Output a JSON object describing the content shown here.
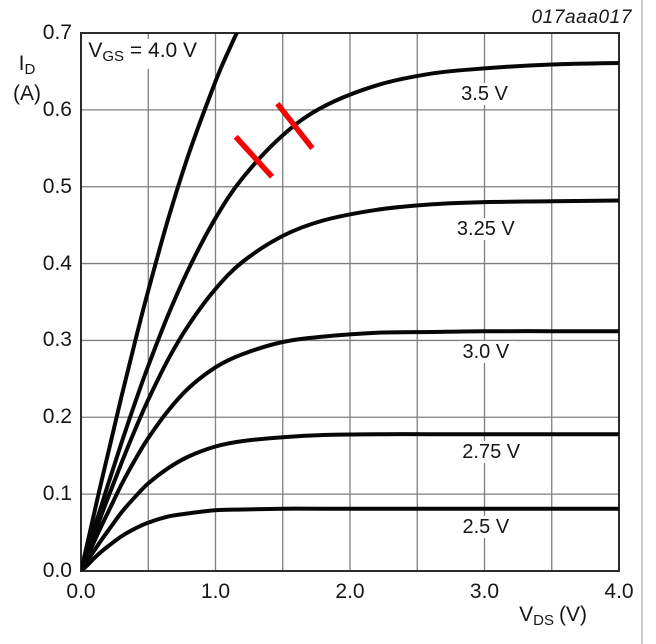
{
  "figure": {
    "id": "017aaa017"
  },
  "colors": {
    "background": "#ffffff",
    "grid": "#7e7e7e",
    "frame": "#2b2b2b",
    "curve": "#070707",
    "text": "#161616",
    "annotation": "#f50003",
    "page_edge": "#cccccc"
  },
  "chart_data": {
    "type": "line",
    "title": "",
    "description": "MOSFET output characteristics: drain current ID (A) versus drain-source voltage VDS (V) for six gate-source voltages VGS",
    "grid": "on",
    "legend_position": "labels-on-curves",
    "x_axis": {
      "label_main": "V",
      "label_sub": "DS",
      "label_unit": "(V)",
      "min": 0,
      "max": 4,
      "grid_step": 0.5,
      "ticks": [
        {
          "label": "0.0",
          "value": 0
        },
        {
          "label": "1.0",
          "value": 1
        },
        {
          "label": "2.0",
          "value": 2
        },
        {
          "label": "3.0",
          "value": 3
        },
        {
          "label": "4.0",
          "value": 4
        }
      ]
    },
    "y_axis": {
      "label_main": "I",
      "label_sub": "D",
      "label_unit": "(A)",
      "min": 0,
      "max": 0.7,
      "grid_step": 0.1,
      "ticks": [
        {
          "label": "0.0",
          "value": 0
        },
        {
          "label": "0.1",
          "value": 0.1
        },
        {
          "label": "0.2",
          "value": 0.2
        },
        {
          "label": "0.3",
          "value": 0.3
        },
        {
          "label": "0.4",
          "value": 0.4
        },
        {
          "label": "0.5",
          "value": 0.5
        },
        {
          "label": "0.6",
          "value": 0.6
        },
        {
          "label": "0.7",
          "value": 0.7
        }
      ]
    },
    "inplot_label": {
      "pre": "V",
      "sub": "GS",
      "post": " = 4.0 V",
      "v": 0.04,
      "i": 0.692
    },
    "series": [
      {
        "name": "VGS = 4.0 V",
        "vds": [
          0,
          0.05,
          0.1,
          0.15,
          0.2,
          0.3,
          0.4,
          0.5,
          0.65,
          0.8,
          1.0,
          1.1,
          1.2,
          1.3
        ],
        "id": [
          0,
          0.038,
          0.077,
          0.115,
          0.152,
          0.226,
          0.297,
          0.365,
          0.459,
          0.542,
          0.637,
          0.678,
          0.715,
          0.747
        ],
        "curve_label": null
      },
      {
        "name": "VGS = 3.5 V",
        "vds": [
          0,
          0.05,
          0.1,
          0.15,
          0.2,
          0.3,
          0.4,
          0.5,
          0.65,
          0.8,
          1.0,
          1.2,
          1.5,
          1.8,
          2.2,
          2.6,
          3.0,
          3.5,
          4.0
        ],
        "id": [
          0,
          0.028,
          0.057,
          0.084,
          0.112,
          0.166,
          0.218,
          0.267,
          0.334,
          0.393,
          0.459,
          0.511,
          0.567,
          0.604,
          0.632,
          0.647,
          0.654,
          0.659,
          0.661
        ],
        "curve_label": {
          "text": "3.5 V",
          "v": 3.0,
          "i": 0.621
        }
      },
      {
        "name": "VGS = 3.25 V",
        "vds": [
          0,
          0.05,
          0.1,
          0.15,
          0.2,
          0.3,
          0.4,
          0.5,
          0.65,
          0.8,
          1.0,
          1.2,
          1.5,
          1.8,
          2.2,
          2.6,
          3.0,
          3.5,
          4.0
        ],
        "id": [
          0,
          0.024,
          0.048,
          0.072,
          0.095,
          0.14,
          0.183,
          0.223,
          0.276,
          0.32,
          0.367,
          0.402,
          0.436,
          0.456,
          0.47,
          0.477,
          0.48,
          0.481,
          0.482
        ],
        "curve_label": {
          "text": "3.25 V",
          "v": 3.01,
          "i": 0.445
        }
      },
      {
        "name": "VGS = 3.0 V",
        "vds": [
          0,
          0.05,
          0.1,
          0.15,
          0.2,
          0.3,
          0.4,
          0.5,
          0.65,
          0.8,
          1.0,
          1.2,
          1.5,
          1.8,
          2.2,
          2.6,
          3.0,
          3.5,
          4.0
        ],
        "id": [
          0,
          0.02,
          0.039,
          0.058,
          0.076,
          0.112,
          0.144,
          0.173,
          0.209,
          0.238,
          0.265,
          0.282,
          0.298,
          0.305,
          0.31,
          0.311,
          0.312,
          0.312,
          0.312
        ],
        "curve_label": {
          "text": "3.0 V",
          "v": 3.01,
          "i": 0.285
        }
      },
      {
        "name": "VGS = 2.75 V",
        "vds": [
          0,
          0.05,
          0.1,
          0.15,
          0.2,
          0.3,
          0.4,
          0.5,
          0.65,
          0.8,
          1.0,
          1.2,
          1.5,
          1.8,
          2.2,
          2.6,
          3.0,
          3.5,
          4.0
        ],
        "id": [
          0,
          0.014,
          0.027,
          0.04,
          0.052,
          0.076,
          0.096,
          0.114,
          0.134,
          0.149,
          0.162,
          0.169,
          0.174,
          0.177,
          0.178,
          0.178,
          0.178,
          0.178,
          0.178
        ],
        "curve_label": {
          "text": "2.75 V",
          "v": 3.05,
          "i": 0.155
        }
      },
      {
        "name": "VGS = 2.5 V",
        "vds": [
          0,
          0.05,
          0.1,
          0.15,
          0.2,
          0.3,
          0.4,
          0.5,
          0.65,
          0.8,
          1.0,
          1.2,
          1.5,
          1.8,
          2.2,
          2.6,
          3.0,
          3.5,
          4.0
        ],
        "id": [
          0,
          0.008,
          0.017,
          0.025,
          0.032,
          0.045,
          0.055,
          0.063,
          0.071,
          0.075,
          0.079,
          0.08,
          0.081,
          0.081,
          0.081,
          0.081,
          0.081,
          0.081,
          0.081
        ],
        "curve_label": {
          "text": "2.5 V",
          "v": 3.01,
          "i": 0.057
        }
      }
    ],
    "annotations": [
      {
        "type": "slash-mark",
        "x1": 1.15,
        "y1": 0.565,
        "x2": 1.42,
        "y2": 0.513
      },
      {
        "type": "slash-mark",
        "x1": 1.46,
        "y1": 0.608,
        "x2": 1.72,
        "y2": 0.55
      }
    ]
  }
}
